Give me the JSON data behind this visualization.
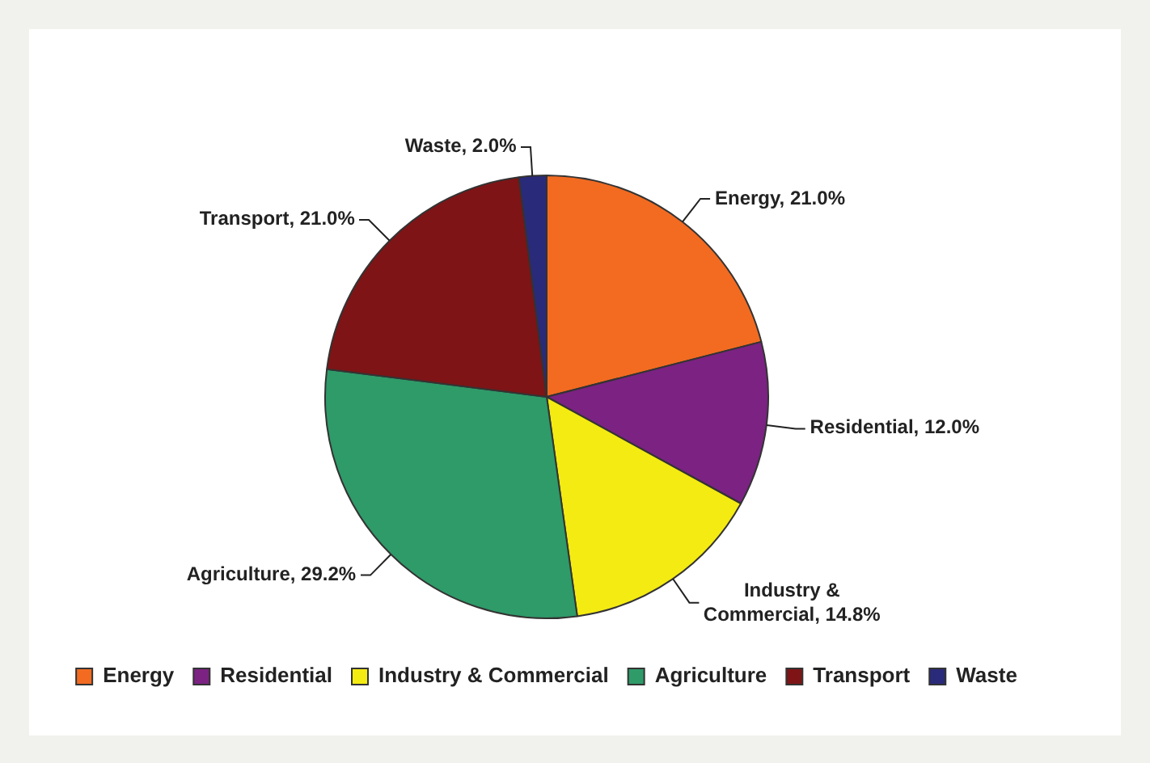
{
  "chart_data": {
    "type": "pie",
    "categories": [
      "Energy",
      "Residential",
      "Industry & Commercial",
      "Agriculture",
      "Transport",
      "Waste"
    ],
    "values": [
      21.0,
      12.0,
      14.8,
      29.2,
      21.0,
      2.0
    ],
    "value_labels": [
      "Energy, 21.0%",
      "Residential, 12.0%",
      "Industry & Commercial, 14.8%",
      "Agriculture, 29.2%",
      "Transport, 21.0%",
      "Waste, 2.0%"
    ],
    "colors": [
      "#f26b21",
      "#7b2283",
      "#f4eb12",
      "#2e9b69",
      "#7e1416",
      "#2a2a7a"
    ],
    "legend": "bottom"
  }
}
